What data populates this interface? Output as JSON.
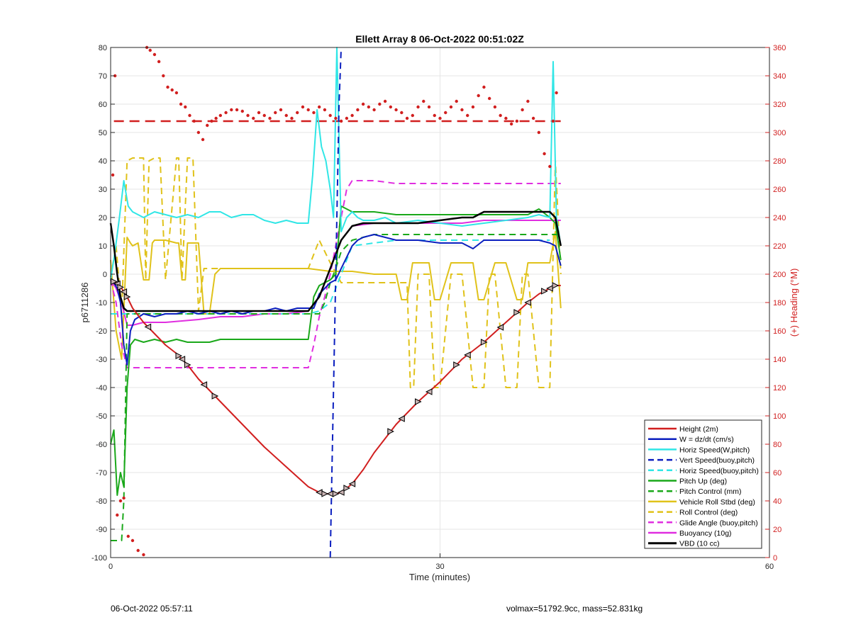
{
  "footer": {
    "timestamp": "06-Oct-2022 05:57:11",
    "info": "volmax=51792.9cc, mass=52.831kg"
  },
  "chart_data": {
    "type": "line",
    "title": "Ellett Array 8 06-Oct-2022 00:51:02Z",
    "xlabel": "Time (minutes)",
    "ylabel": "p6711286",
    "y2label": "(+) Heading (°M)",
    "xlim": [
      0,
      60
    ],
    "ylim": [
      -100,
      80
    ],
    "y2lim": [
      0,
      360
    ],
    "xticks": [
      "0",
      "30",
      "60"
    ],
    "yticks": [
      "-100",
      "-90",
      "-80",
      "-70",
      "-60",
      "-50",
      "-40",
      "-30",
      "-20",
      "-10",
      "0",
      "10",
      "20",
      "30",
      "40",
      "50",
      "60",
      "70",
      "80"
    ],
    "y2ticks": [
      "0",
      "20",
      "40",
      "60",
      "80",
      "100",
      "120",
      "140",
      "160",
      "180",
      "200",
      "220",
      "240",
      "260",
      "280",
      "300",
      "320",
      "340",
      "360"
    ],
    "grid": true,
    "legend_position": "bottom-right",
    "colors": {
      "red": "#d11f1f",
      "blue": "#0b1fbf",
      "cyan": "#30e6e6",
      "green": "#1aa81a",
      "yellow": "#e0c21a",
      "magenta": "#e02ee0",
      "black": "#000000",
      "heading_axis": "#d11f1f"
    },
    "heading_reference": 308,
    "series": [
      {
        "name": "Height (2m)",
        "color": "red",
        "dash": "solid",
        "width": 2,
        "x": [
          0,
          0.5,
          1,
          1.5,
          2,
          3,
          4,
          5,
          6,
          7,
          8,
          9,
          10,
          12,
          14,
          16,
          18,
          19,
          19.5,
          20,
          20.5,
          21,
          22,
          23,
          24,
          25,
          26,
          28,
          30,
          32,
          34,
          36,
          38,
          39,
          40,
          40.5,
          41
        ],
        "y": [
          -2,
          -3,
          -5,
          -8,
          -12,
          -17,
          -21,
          -25,
          -28,
          -32,
          -37,
          -41,
          -45,
          -53,
          -61,
          -68,
          -75,
          -77,
          -77.5,
          -77.5,
          -77.5,
          -77,
          -74,
          -69,
          -63,
          -58,
          -53,
          -45,
          -38,
          -30,
          -24,
          -17,
          -10,
          -7,
          -5,
          -4,
          -4
        ]
      },
      {
        "name": "W = dz/dt (cm/s)",
        "color": "blue",
        "dash": "solid",
        "width": 2,
        "x": [
          0,
          0.3,
          0.6,
          0.9,
          1.2,
          1.5,
          1.8,
          2.2,
          3,
          4,
          5,
          6,
          7,
          8,
          9,
          10,
          11,
          12,
          13,
          14,
          15,
          16,
          17,
          18,
          18.5,
          19,
          19.5,
          20,
          20.5,
          21,
          21.5,
          22,
          22.5,
          23,
          24,
          25,
          26,
          28,
          30,
          32,
          33,
          34,
          36,
          38,
          39,
          40,
          40.5,
          41
        ],
        "y": [
          -2,
          -3,
          -5,
          -10,
          -25,
          -32,
          -20,
          -16,
          -14,
          -15,
          -14,
          -14,
          -13,
          -14,
          -13,
          -14,
          -13,
          -14,
          -13,
          -13,
          -12,
          -13,
          -12,
          -12,
          -12,
          -7,
          -5,
          -3,
          -2,
          2,
          6,
          10,
          12,
          13,
          14,
          13,
          12,
          12,
          11,
          11,
          9,
          12,
          12,
          12,
          12,
          11,
          10,
          3
        ]
      },
      {
        "name": "Horiz Speed(W,pitch)",
        "color": "cyan",
        "dash": "solid",
        "width": 2,
        "x": [
          0,
          0.4,
          0.8,
          1.2,
          1.6,
          2,
          3,
          4,
          5,
          6,
          7,
          8,
          9,
          10,
          11,
          12,
          13,
          14,
          15,
          16,
          17,
          18,
          18.4,
          18.8,
          19.2,
          19.6,
          20,
          20.3,
          20.6,
          21,
          21.5,
          22,
          22.5,
          23,
          24,
          25,
          26,
          28,
          30,
          32,
          34,
          36,
          38,
          39,
          40,
          40.3,
          40.6,
          41
        ],
        "y": [
          -2,
          8,
          20,
          33,
          24,
          22,
          20,
          22,
          21,
          20,
          21,
          20,
          22,
          22,
          20,
          21,
          21,
          19,
          18,
          19,
          18,
          18,
          35,
          58,
          45,
          40,
          30,
          20,
          80,
          15,
          20,
          22,
          20,
          19,
          19,
          20,
          18,
          19,
          18,
          17,
          18,
          19,
          20,
          21,
          20,
          75,
          20,
          10
        ]
      },
      {
        "name": "Vert Speed(buoy,pitch)",
        "color": "blue",
        "dash": "dashed",
        "width": 2,
        "x": [
          20.0,
          20.2,
          20.4,
          20.6,
          20.8,
          21.0
        ],
        "y": [
          -100,
          -60,
          -20,
          20,
          60,
          80
        ]
      },
      {
        "name": "Horiz Speed(buoy,pitch)",
        "color": "cyan",
        "dash": "dashed",
        "width": 2,
        "x": [
          0,
          5,
          10,
          15,
          18,
          19,
          20,
          21,
          22,
          26,
          30,
          34,
          38,
          40
        ],
        "y": [
          -14,
          -14,
          -14,
          -14,
          -14,
          -13,
          -10,
          0,
          10,
          12,
          12,
          12,
          12,
          12
        ]
      },
      {
        "name": "Pitch Up (deg)",
        "color": "green",
        "dash": "solid",
        "width": 2,
        "x": [
          0,
          0.3,
          0.6,
          0.9,
          1.2,
          1.5,
          1.8,
          2.2,
          3,
          4,
          5,
          6,
          7,
          8,
          9,
          10,
          12,
          14,
          16,
          18,
          18.5,
          19,
          19.5,
          20,
          20.5,
          21,
          21.5,
          22,
          24,
          26,
          28,
          30,
          32,
          34,
          36,
          38,
          39,
          40,
          40.5,
          41
        ],
        "y": [
          -60,
          -55,
          -78,
          -70,
          -75,
          -40,
          -25,
          -23,
          -24,
          -23,
          -24,
          -23,
          -24,
          -24,
          -24,
          -23,
          -23,
          -23,
          -23,
          -23,
          -8,
          -4,
          -3,
          -2,
          0,
          24,
          23,
          22,
          22,
          21,
          21,
          21,
          21,
          21,
          21,
          21,
          23,
          20,
          18,
          5
        ]
      },
      {
        "name": "Pitch Control (mm)",
        "color": "green",
        "dash": "dashed",
        "width": 2,
        "x": [
          0,
          0.5,
          1,
          1.2,
          1.5,
          2,
          5,
          10,
          15,
          18,
          19,
          19.5,
          20,
          20.5,
          21,
          22,
          23,
          24,
          26,
          28,
          30,
          34,
          38,
          40,
          41
        ],
        "y": [
          -94,
          -94,
          -94,
          -80,
          -14,
          -14,
          -14,
          -14,
          -14,
          -14,
          -14,
          -10,
          -3,
          2,
          8,
          12,
          13,
          14,
          14,
          14,
          14,
          14,
          14,
          14,
          14
        ]
      },
      {
        "name": "Vehicle Roll Stbd (deg)",
        "color": "yellow",
        "dash": "solid",
        "width": 2,
        "x": [
          0,
          0.5,
          1,
          1.5,
          1.8,
          2,
          2.5,
          3,
          3.5,
          3.8,
          4,
          5,
          6,
          6.2,
          6.5,
          6.8,
          7,
          8,
          8.5,
          9,
          9.5,
          10,
          12,
          14,
          16,
          18,
          20,
          22,
          24,
          26,
          26.5,
          27,
          27.5,
          28,
          29,
          29.5,
          30,
          31,
          31.5,
          32,
          33,
          33.5,
          34,
          35,
          35.5,
          36,
          37,
          37.5,
          38,
          39,
          40,
          40.5,
          41
        ],
        "y": [
          5,
          -20,
          -30,
          13,
          11,
          10,
          11,
          -2,
          -2,
          11,
          12,
          12,
          11,
          11,
          -2,
          -2,
          11,
          11,
          -14,
          -14,
          0,
          2,
          2,
          2,
          2,
          2,
          1,
          1,
          0,
          0,
          -9,
          -9,
          4,
          4,
          4,
          -9,
          -9,
          4,
          4,
          4,
          4,
          -9,
          -9,
          4,
          4,
          4,
          -9,
          -9,
          4,
          4,
          4,
          15,
          -12
        ]
      },
      {
        "name": "Roll Control (deg)",
        "color": "yellow",
        "dash": "dashed",
        "width": 2,
        "x": [
          0,
          0.5,
          1,
          1.5,
          2,
          3,
          3.2,
          3.5,
          4,
          4.5,
          5,
          6,
          6.2,
          6.5,
          7,
          7.5,
          8,
          8.5,
          9,
          10,
          12,
          14,
          16,
          18,
          19,
          20,
          21,
          22,
          24,
          26,
          27,
          27.3,
          27.6,
          28,
          29,
          29.5,
          30,
          31,
          32,
          33,
          34,
          34.5,
          35,
          36,
          37,
          37.5,
          38,
          39,
          40,
          40.5,
          41
        ],
        "y": [
          -1,
          10,
          -14,
          40,
          41,
          41,
          -2,
          40,
          41,
          41,
          -2,
          41,
          41,
          -2,
          41,
          41,
          -13,
          2,
          2,
          2,
          2,
          2,
          2,
          2,
          12,
          4,
          -3,
          -3,
          -3,
          -3,
          -3,
          -40,
          -40,
          0,
          0,
          -40,
          -40,
          0,
          0,
          -40,
          -40,
          0,
          0,
          -40,
          -40,
          0,
          0,
          -40,
          -40,
          40,
          0
        ]
      },
      {
        "name": "Glide Angle (buoy,pitch)",
        "color": "magenta",
        "dash": "dashed",
        "width": 2,
        "x": [
          0,
          0.5,
          1,
          1.5,
          2,
          3,
          4,
          5,
          6,
          7,
          8,
          9,
          10,
          12,
          14,
          16,
          18,
          18.5,
          19,
          19.5,
          20,
          20.5,
          21,
          21.5,
          22,
          24,
          26,
          28,
          30,
          32,
          34,
          36,
          38,
          40,
          41
        ],
        "y": [
          -2,
          -10,
          -25,
          -33,
          -33,
          -33,
          -33,
          -33,
          -33,
          -33,
          -33,
          -33,
          -33,
          -33,
          -33,
          -33,
          -33,
          -25,
          -15,
          -8,
          0,
          10,
          20,
          30,
          33,
          33,
          32,
          32,
          32,
          32,
          32,
          32,
          32,
          32,
          32
        ]
      },
      {
        "name": "Buoyancy (10g)",
        "color": "magenta",
        "dash": "solid",
        "width": 2,
        "x": [
          0,
          0.5,
          1,
          1.5,
          2,
          3,
          5,
          8,
          10,
          12,
          14,
          16,
          18,
          19,
          20,
          21,
          22,
          24,
          26,
          28,
          30,
          32,
          34,
          36,
          38,
          40,
          41
        ],
        "y": [
          -2,
          -5,
          -10,
          -18,
          -18,
          -17,
          -17,
          -16,
          -15,
          -15,
          -14,
          -14,
          -13,
          -8,
          2,
          12,
          17,
          18,
          18,
          18,
          18,
          18,
          19,
          19,
          19,
          19,
          19
        ]
      },
      {
        "name": "VBD (10 cc)",
        "color": "black",
        "dash": "solid",
        "width": 2.5,
        "x": [
          0,
          0.3,
          0.6,
          0.9,
          1.2,
          1.5,
          2,
          5,
          10,
          15,
          18,
          19,
          20,
          21,
          22,
          23,
          24,
          26,
          28,
          30,
          32,
          33,
          34,
          36,
          38,
          39,
          40,
          40.5,
          41
        ],
        "y": [
          18,
          10,
          0,
          -8,
          -12,
          -13,
          -13,
          -13,
          -13,
          -13,
          -13,
          -8,
          2,
          12,
          17,
          18,
          18,
          18,
          18,
          19,
          20,
          20,
          22,
          22,
          22,
          22,
          22,
          20,
          10
        ]
      }
    ],
    "heading_points": {
      "name": "Heading",
      "color": "red",
      "axis": "right",
      "x": [
        0.2,
        0.4,
        0.6,
        0.9,
        1.2,
        1.6,
        2.0,
        2.5,
        3,
        3.3,
        3.6,
        4.0,
        4.4,
        4.8,
        5.2,
        5.6,
        6.0,
        6.4,
        6.8,
        7.2,
        7.6,
        8.0,
        8.4,
        8.8,
        9.2,
        9.6,
        10,
        10.5,
        11,
        11.5,
        12,
        12.5,
        13,
        13.5,
        14,
        14.5,
        15,
        15.5,
        16,
        16.5,
        17,
        17.5,
        18,
        18.5,
        19,
        19.5,
        20,
        20.5,
        21,
        21.5,
        22,
        22.5,
        23,
        23.5,
        24,
        24.5,
        25,
        25.5,
        26,
        26.5,
        27,
        27.5,
        28,
        28.5,
        29,
        29.5,
        30,
        30.5,
        31,
        31.5,
        32,
        32.5,
        33,
        33.5,
        34,
        34.5,
        35,
        35.5,
        36,
        36.5,
        37,
        37.5,
        38,
        38.5,
        39,
        39.5,
        40,
        40.3,
        40.6
      ],
      "y": [
        270,
        340,
        30,
        40,
        42,
        15,
        12,
        5,
        2,
        360,
        358,
        355,
        350,
        340,
        332,
        330,
        328,
        320,
        318,
        312,
        308,
        300,
        295,
        305,
        308,
        310,
        312,
        314,
        316,
        316,
        315,
        312,
        310,
        314,
        312,
        310,
        314,
        316,
        312,
        310,
        314,
        318,
        316,
        314,
        318,
        316,
        312,
        310,
        308,
        310,
        312,
        316,
        320,
        318,
        316,
        320,
        322,
        318,
        316,
        314,
        310,
        312,
        318,
        322,
        318,
        312,
        310,
        314,
        318,
        322,
        316,
        312,
        318,
        326,
        332,
        324,
        318,
        312,
        310,
        306,
        308,
        316,
        322,
        310,
        300,
        285,
        276,
        308,
        328
      ]
    }
  }
}
